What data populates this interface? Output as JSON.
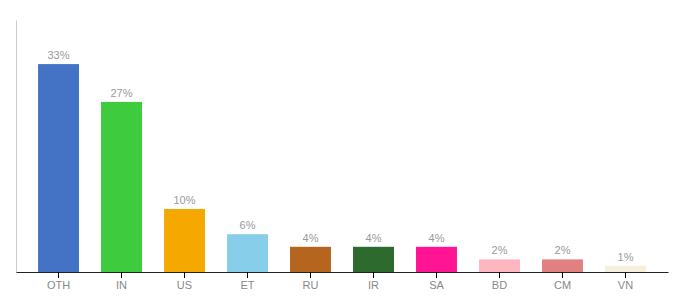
{
  "chart_data": {
    "type": "bar",
    "categories": [
      "OTH",
      "IN",
      "US",
      "ET",
      "RU",
      "IR",
      "SA",
      "BD",
      "CM",
      "VN"
    ],
    "values": [
      33,
      27,
      10,
      6,
      4,
      4,
      4,
      2,
      2,
      1
    ],
    "value_labels": [
      "33%",
      "27%",
      "10%",
      "6%",
      "4%",
      "4%",
      "4%",
      "2%",
      "2%",
      "1%"
    ],
    "colors": [
      "#4472c4",
      "#3ecc3e",
      "#f5a800",
      "#87ceeb",
      "#b5651d",
      "#2d6a2d",
      "#ff1493",
      "#ffb6c1",
      "#e08080",
      "#f5f0dc"
    ],
    "ylim": [
      0,
      40
    ],
    "data_labels": true,
    "tick_labels": "x"
  }
}
